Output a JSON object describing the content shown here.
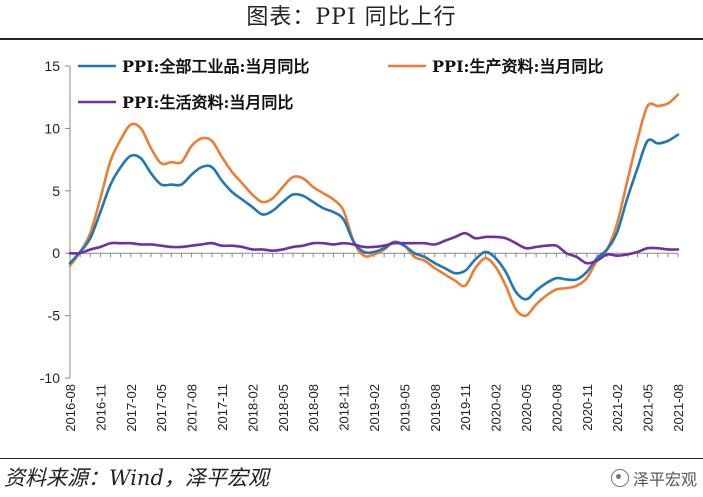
{
  "page": {
    "title": "图表：PPI 同比上行",
    "source": "资料来源：Wind，泽平宏观",
    "watermark": "泽平宏观"
  },
  "chart_data": {
    "type": "line",
    "title": "",
    "xlabel": "",
    "ylabel": "",
    "ylim": [
      -10,
      15
    ],
    "yticks": [
      -10,
      -5,
      0,
      5,
      10,
      15
    ],
    "grid": false,
    "legend_position": "top-left",
    "x": [
      "2016-08",
      "2016-09",
      "2016-10",
      "2016-11",
      "2016-12",
      "2017-01",
      "2017-02",
      "2017-03",
      "2017-04",
      "2017-05",
      "2017-06",
      "2017-07",
      "2017-08",
      "2017-09",
      "2017-10",
      "2017-11",
      "2017-12",
      "2018-01",
      "2018-02",
      "2018-03",
      "2018-04",
      "2018-05",
      "2018-06",
      "2018-07",
      "2018-08",
      "2018-09",
      "2018-10",
      "2018-11",
      "2018-12",
      "2019-01",
      "2019-02",
      "2019-03",
      "2019-04",
      "2019-05",
      "2019-06",
      "2019-07",
      "2019-08",
      "2019-09",
      "2019-10",
      "2019-11",
      "2019-12",
      "2020-01",
      "2020-02",
      "2020-03",
      "2020-04",
      "2020-05",
      "2020-06",
      "2020-07",
      "2020-08",
      "2020-09",
      "2020-10",
      "2020-11",
      "2020-12",
      "2021-01",
      "2021-02",
      "2021-03",
      "2021-04",
      "2021-05",
      "2021-06",
      "2021-07",
      "2021-08"
    ],
    "xtick_labels": [
      "2016-08",
      "2016-11",
      "2017-02",
      "2017-05",
      "2017-08",
      "2017-11",
      "2018-02",
      "2018-05",
      "2018-08",
      "2018-11",
      "2019-02",
      "2019-05",
      "2019-08",
      "2019-11",
      "2020-02",
      "2020-05",
      "2020-08",
      "2020-11",
      "2021-02",
      "2021-05",
      "2021-08"
    ],
    "series": [
      {
        "name": "PPI:全部工业品:当月同比",
        "color": "#1f77b4",
        "values": [
          -0.8,
          0.1,
          1.2,
          3.3,
          5.5,
          6.9,
          7.8,
          7.6,
          6.4,
          5.5,
          5.5,
          5.5,
          6.3,
          6.9,
          6.9,
          5.8,
          4.9,
          4.3,
          3.7,
          3.1,
          3.4,
          4.1,
          4.7,
          4.6,
          4.1,
          3.6,
          3.3,
          2.7,
          0.9,
          0.1,
          0.1,
          0.4,
          0.9,
          0.6,
          0.0,
          -0.3,
          -0.8,
          -1.2,
          -1.6,
          -1.4,
          -0.5,
          0.1,
          -0.4,
          -1.5,
          -3.1,
          -3.7,
          -3.0,
          -2.4,
          -2.0,
          -2.1,
          -2.1,
          -1.5,
          -0.4,
          0.3,
          1.7,
          4.4,
          6.8,
          9.0,
          8.8,
          9.0,
          9.5
        ]
      },
      {
        "name": "PPI:生产资料:当月同比",
        "color": "#ed7d31",
        "values": [
          -1.0,
          0.1,
          1.6,
          4.4,
          7.4,
          9.1,
          10.3,
          10.0,
          8.4,
          7.2,
          7.3,
          7.3,
          8.6,
          9.2,
          9.0,
          7.7,
          6.5,
          5.6,
          4.7,
          4.1,
          4.4,
          5.3,
          6.1,
          6.0,
          5.3,
          4.8,
          4.3,
          3.4,
          0.9,
          -0.2,
          -0.1,
          0.3,
          0.9,
          0.6,
          -0.3,
          -0.6,
          -1.2,
          -1.7,
          -2.2,
          -2.6,
          -1.2,
          -0.4,
          -1.1,
          -2.6,
          -4.5,
          -5.0,
          -4.1,
          -3.4,
          -2.9,
          -2.8,
          -2.6,
          -2.0,
          -0.6,
          0.3,
          2.4,
          5.8,
          9.1,
          11.8,
          11.8,
          12.0,
          12.7
        ]
      },
      {
        "name": "PPI:生活资料:当月同比",
        "color": "#7030a0",
        "values": [
          0.0,
          0.0,
          0.3,
          0.5,
          0.8,
          0.8,
          0.8,
          0.7,
          0.7,
          0.6,
          0.5,
          0.5,
          0.6,
          0.7,
          0.8,
          0.6,
          0.6,
          0.5,
          0.3,
          0.3,
          0.2,
          0.3,
          0.5,
          0.6,
          0.8,
          0.8,
          0.7,
          0.8,
          0.7,
          0.5,
          0.5,
          0.6,
          0.8,
          0.8,
          0.8,
          0.8,
          0.7,
          1.0,
          1.3,
          1.6,
          1.2,
          1.3,
          1.3,
          1.2,
          0.8,
          0.4,
          0.5,
          0.6,
          0.6,
          0.0,
          -0.3,
          -0.8,
          -0.6,
          -0.1,
          -0.2,
          -0.1,
          0.1,
          0.4,
          0.4,
          0.3,
          0.3
        ]
      }
    ]
  }
}
